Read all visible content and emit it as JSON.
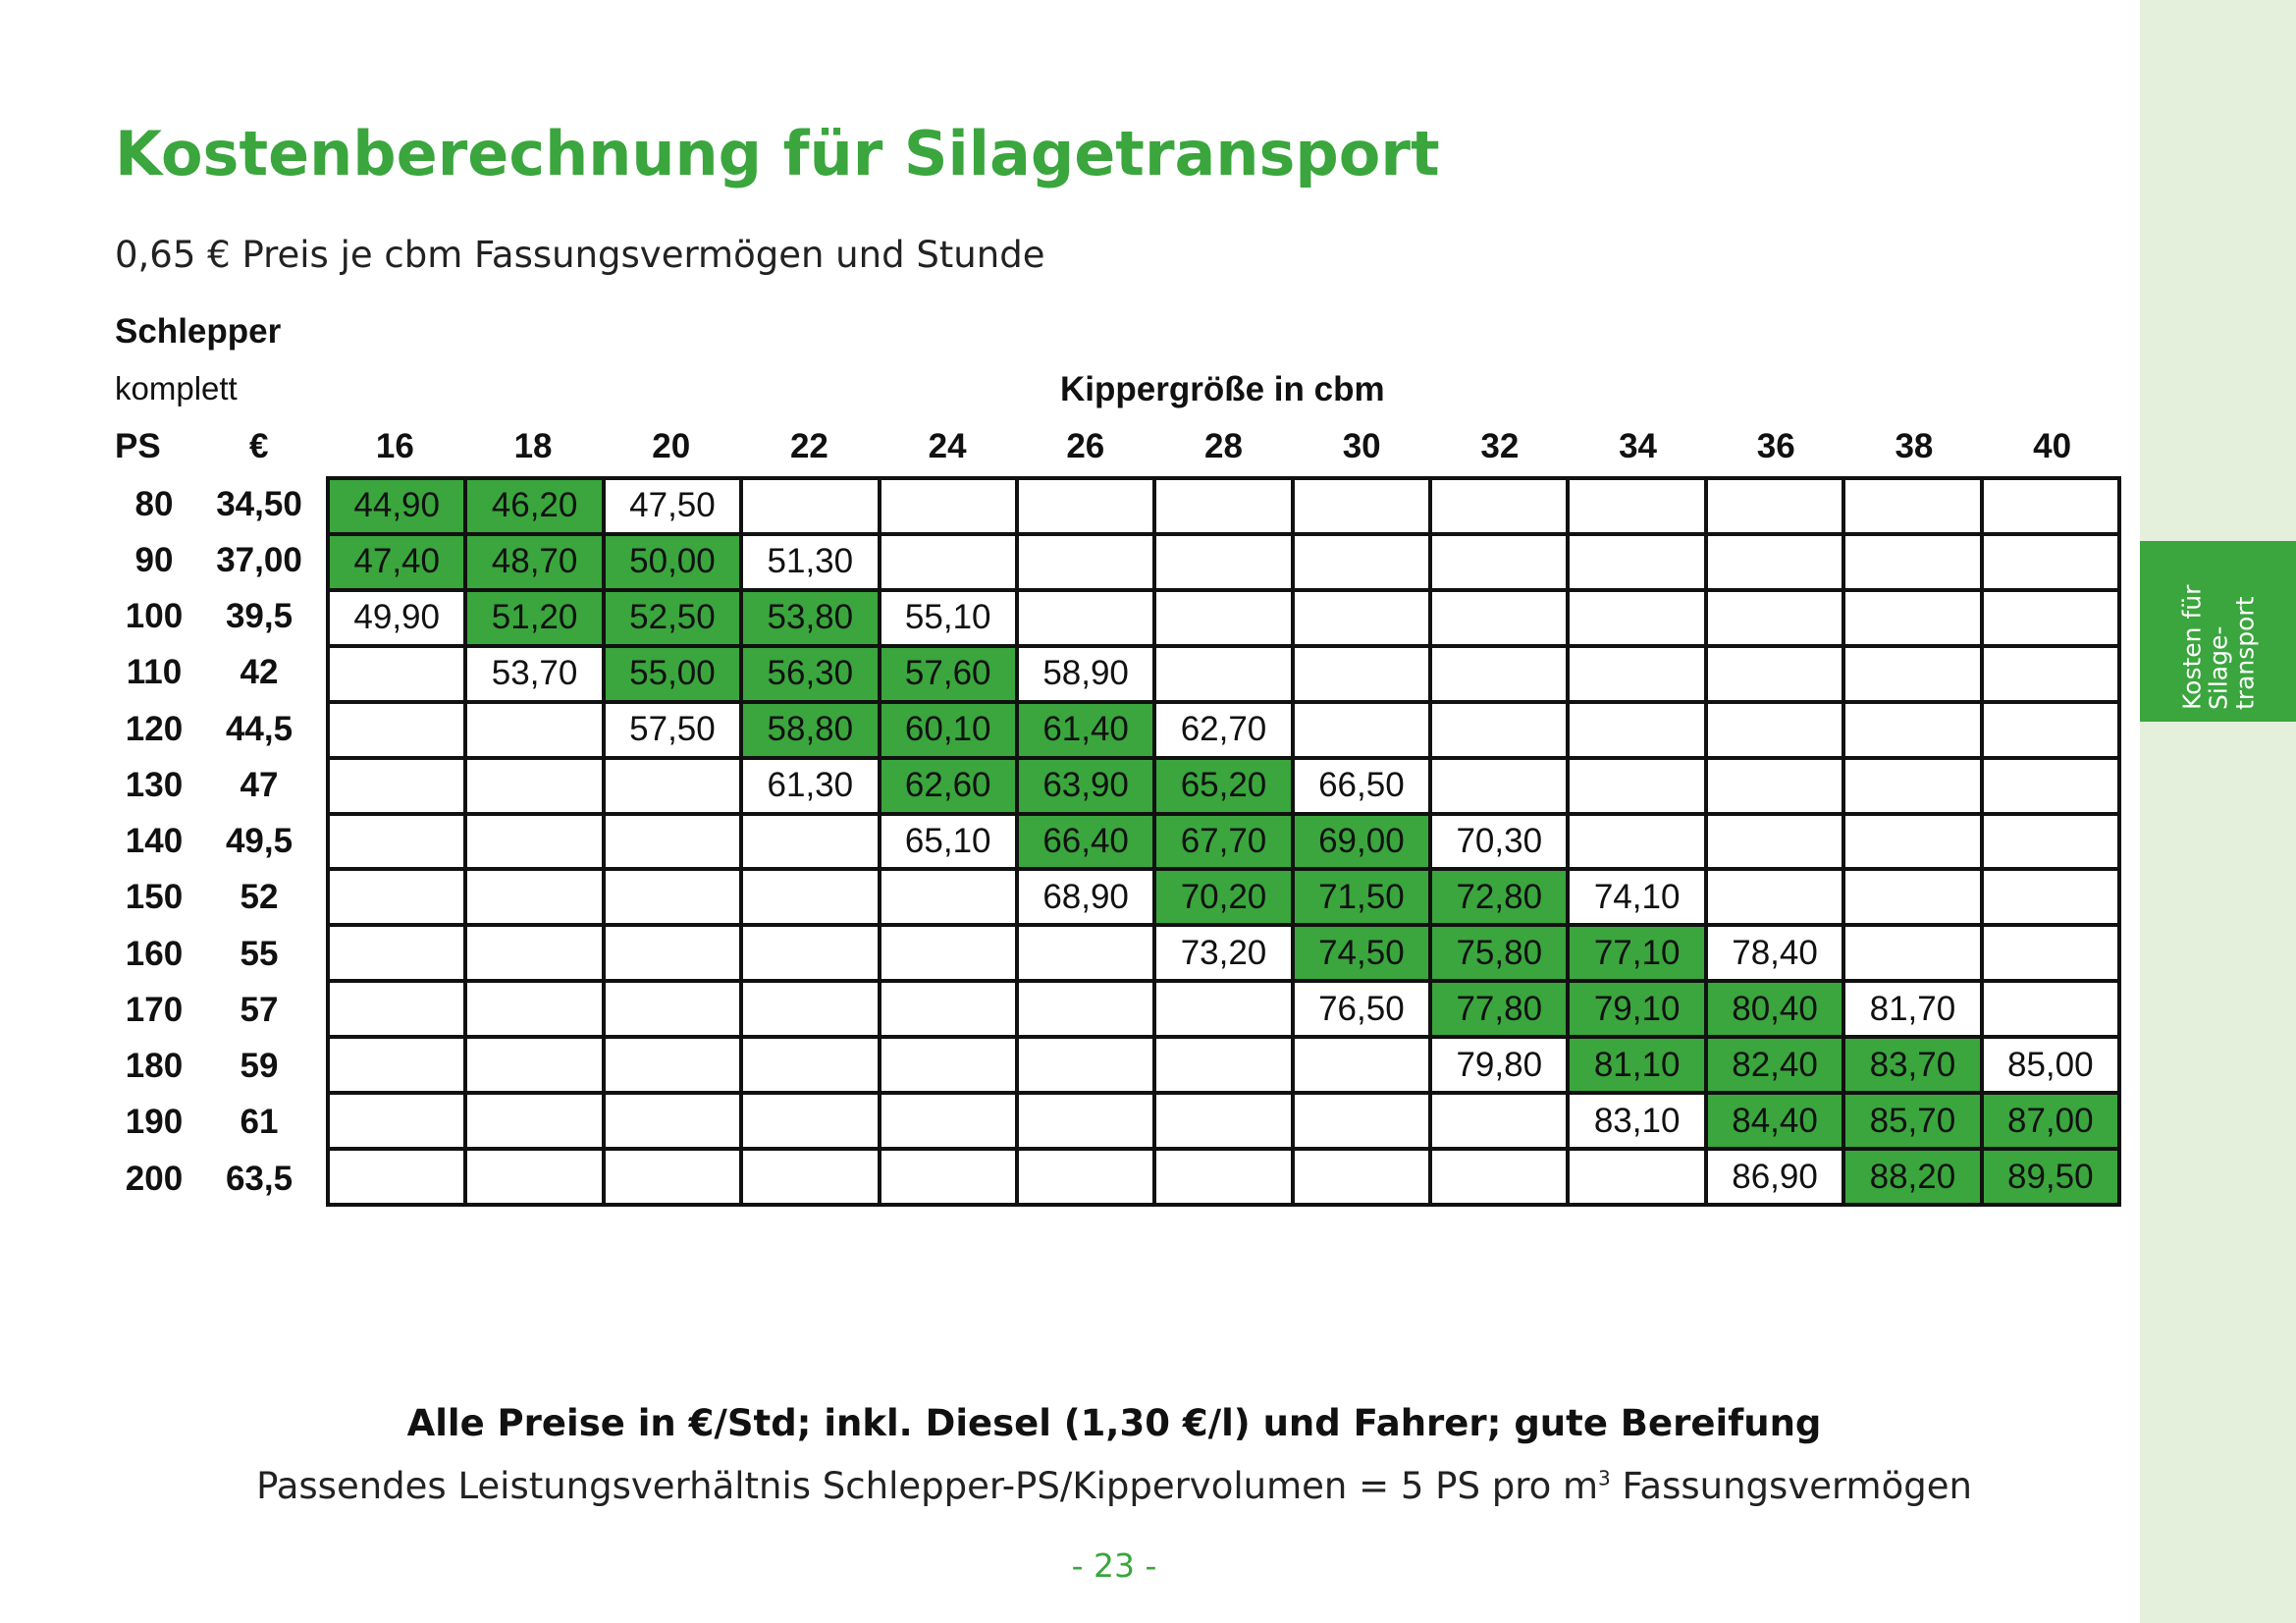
{
  "title": "Kostenberechnung für Silagetransport",
  "subtitle": "0,65 € Preis je cbm Fassungsvermögen und Stunde",
  "labels": {
    "schlepper": "Schlepper",
    "komplett": "komplett",
    "kippergroesse": "Kippergröße in cbm",
    "ps": "PS",
    "euro": "€"
  },
  "columns": [
    "16",
    "18",
    "20",
    "22",
    "24",
    "26",
    "28",
    "30",
    "32",
    "34",
    "36",
    "38",
    "40"
  ],
  "rows": [
    {
      "ps": "80",
      "eur": "34,50",
      "cells": [
        {
          "v": "44,90",
          "hl": true
        },
        {
          "v": "46,20",
          "hl": true
        },
        {
          "v": "47,50",
          "hl": false
        },
        {
          "v": "",
          "hl": false
        },
        {
          "v": "",
          "hl": false
        },
        {
          "v": "",
          "hl": false
        },
        {
          "v": "",
          "hl": false
        },
        {
          "v": "",
          "hl": false
        },
        {
          "v": "",
          "hl": false
        },
        {
          "v": "",
          "hl": false
        },
        {
          "v": "",
          "hl": false
        },
        {
          "v": "",
          "hl": false
        },
        {
          "v": "",
          "hl": false
        }
      ]
    },
    {
      "ps": "90",
      "eur": "37,00",
      "cells": [
        {
          "v": "47,40",
          "hl": true
        },
        {
          "v": "48,70",
          "hl": true
        },
        {
          "v": "50,00",
          "hl": true
        },
        {
          "v": "51,30",
          "hl": false
        },
        {
          "v": "",
          "hl": false
        },
        {
          "v": "",
          "hl": false
        },
        {
          "v": "",
          "hl": false
        },
        {
          "v": "",
          "hl": false
        },
        {
          "v": "",
          "hl": false
        },
        {
          "v": "",
          "hl": false
        },
        {
          "v": "",
          "hl": false
        },
        {
          "v": "",
          "hl": false
        },
        {
          "v": "",
          "hl": false
        }
      ]
    },
    {
      "ps": "100",
      "eur": "39,5",
      "cells": [
        {
          "v": "49,90",
          "hl": false
        },
        {
          "v": "51,20",
          "hl": true
        },
        {
          "v": "52,50",
          "hl": true
        },
        {
          "v": "53,80",
          "hl": true
        },
        {
          "v": "55,10",
          "hl": false
        },
        {
          "v": "",
          "hl": false
        },
        {
          "v": "",
          "hl": false
        },
        {
          "v": "",
          "hl": false
        },
        {
          "v": "",
          "hl": false
        },
        {
          "v": "",
          "hl": false
        },
        {
          "v": "",
          "hl": false
        },
        {
          "v": "",
          "hl": false
        },
        {
          "v": "",
          "hl": false
        }
      ]
    },
    {
      "ps": "110",
      "eur": "42",
      "cells": [
        {
          "v": "",
          "hl": false
        },
        {
          "v": "53,70",
          "hl": false
        },
        {
          "v": "55,00",
          "hl": true
        },
        {
          "v": "56,30",
          "hl": true
        },
        {
          "v": "57,60",
          "hl": true
        },
        {
          "v": "58,90",
          "hl": false
        },
        {
          "v": "",
          "hl": false
        },
        {
          "v": "",
          "hl": false
        },
        {
          "v": "",
          "hl": false
        },
        {
          "v": "",
          "hl": false
        },
        {
          "v": "",
          "hl": false
        },
        {
          "v": "",
          "hl": false
        },
        {
          "v": "",
          "hl": false
        }
      ]
    },
    {
      "ps": "120",
      "eur": "44,5",
      "cells": [
        {
          "v": "",
          "hl": false
        },
        {
          "v": "",
          "hl": false
        },
        {
          "v": "57,50",
          "hl": false
        },
        {
          "v": "58,80",
          "hl": true
        },
        {
          "v": "60,10",
          "hl": true
        },
        {
          "v": "61,40",
          "hl": true
        },
        {
          "v": "62,70",
          "hl": false
        },
        {
          "v": "",
          "hl": false
        },
        {
          "v": "",
          "hl": false
        },
        {
          "v": "",
          "hl": false
        },
        {
          "v": "",
          "hl": false
        },
        {
          "v": "",
          "hl": false
        },
        {
          "v": "",
          "hl": false
        }
      ]
    },
    {
      "ps": "130",
      "eur": "47",
      "cells": [
        {
          "v": "",
          "hl": false
        },
        {
          "v": "",
          "hl": false
        },
        {
          "v": "",
          "hl": false
        },
        {
          "v": "61,30",
          "hl": false
        },
        {
          "v": "62,60",
          "hl": true
        },
        {
          "v": "63,90",
          "hl": true
        },
        {
          "v": "65,20",
          "hl": true
        },
        {
          "v": "66,50",
          "hl": false
        },
        {
          "v": "",
          "hl": false
        },
        {
          "v": "",
          "hl": false
        },
        {
          "v": "",
          "hl": false
        },
        {
          "v": "",
          "hl": false
        },
        {
          "v": "",
          "hl": false
        }
      ]
    },
    {
      "ps": "140",
      "eur": "49,5",
      "cells": [
        {
          "v": "",
          "hl": false
        },
        {
          "v": "",
          "hl": false
        },
        {
          "v": "",
          "hl": false
        },
        {
          "v": "",
          "hl": false
        },
        {
          "v": "65,10",
          "hl": false
        },
        {
          "v": "66,40",
          "hl": true
        },
        {
          "v": "67,70",
          "hl": true
        },
        {
          "v": "69,00",
          "hl": true
        },
        {
          "v": "70,30",
          "hl": false
        },
        {
          "v": "",
          "hl": false
        },
        {
          "v": "",
          "hl": false
        },
        {
          "v": "",
          "hl": false
        },
        {
          "v": "",
          "hl": false
        }
      ]
    },
    {
      "ps": "150",
      "eur": "52",
      "cells": [
        {
          "v": "",
          "hl": false
        },
        {
          "v": "",
          "hl": false
        },
        {
          "v": "",
          "hl": false
        },
        {
          "v": "",
          "hl": false
        },
        {
          "v": "",
          "hl": false
        },
        {
          "v": "68,90",
          "hl": false
        },
        {
          "v": "70,20",
          "hl": true
        },
        {
          "v": "71,50",
          "hl": true
        },
        {
          "v": "72,80",
          "hl": true
        },
        {
          "v": "74,10",
          "hl": false
        },
        {
          "v": "",
          "hl": false
        },
        {
          "v": "",
          "hl": false
        },
        {
          "v": "",
          "hl": false
        }
      ]
    },
    {
      "ps": "160",
      "eur": "55",
      "cells": [
        {
          "v": "",
          "hl": false
        },
        {
          "v": "",
          "hl": false
        },
        {
          "v": "",
          "hl": false
        },
        {
          "v": "",
          "hl": false
        },
        {
          "v": "",
          "hl": false
        },
        {
          "v": "",
          "hl": false
        },
        {
          "v": "73,20",
          "hl": false
        },
        {
          "v": "74,50",
          "hl": true
        },
        {
          "v": "75,80",
          "hl": true
        },
        {
          "v": "77,10",
          "hl": true
        },
        {
          "v": "78,40",
          "hl": false
        },
        {
          "v": "",
          "hl": false
        },
        {
          "v": "",
          "hl": false
        }
      ]
    },
    {
      "ps": "170",
      "eur": "57",
      "cells": [
        {
          "v": "",
          "hl": false
        },
        {
          "v": "",
          "hl": false
        },
        {
          "v": "",
          "hl": false
        },
        {
          "v": "",
          "hl": false
        },
        {
          "v": "",
          "hl": false
        },
        {
          "v": "",
          "hl": false
        },
        {
          "v": "",
          "hl": false
        },
        {
          "v": "76,50",
          "hl": false
        },
        {
          "v": "77,80",
          "hl": true
        },
        {
          "v": "79,10",
          "hl": true
        },
        {
          "v": "80,40",
          "hl": true
        },
        {
          "v": "81,70",
          "hl": false
        },
        {
          "v": "",
          "hl": false
        }
      ]
    },
    {
      "ps": "180",
      "eur": "59",
      "cells": [
        {
          "v": "",
          "hl": false
        },
        {
          "v": "",
          "hl": false
        },
        {
          "v": "",
          "hl": false
        },
        {
          "v": "",
          "hl": false
        },
        {
          "v": "",
          "hl": false
        },
        {
          "v": "",
          "hl": false
        },
        {
          "v": "",
          "hl": false
        },
        {
          "v": "",
          "hl": false
        },
        {
          "v": "79,80",
          "hl": false
        },
        {
          "v": "81,10",
          "hl": true
        },
        {
          "v": "82,40",
          "hl": true
        },
        {
          "v": "83,70",
          "hl": true
        },
        {
          "v": "85,00",
          "hl": false
        }
      ]
    },
    {
      "ps": "190",
      "eur": "61",
      "cells": [
        {
          "v": "",
          "hl": false
        },
        {
          "v": "",
          "hl": false
        },
        {
          "v": "",
          "hl": false
        },
        {
          "v": "",
          "hl": false
        },
        {
          "v": "",
          "hl": false
        },
        {
          "v": "",
          "hl": false
        },
        {
          "v": "",
          "hl": false
        },
        {
          "v": "",
          "hl": false
        },
        {
          "v": "",
          "hl": false
        },
        {
          "v": "83,10",
          "hl": false
        },
        {
          "v": "84,40",
          "hl": true
        },
        {
          "v": "85,70",
          "hl": true
        },
        {
          "v": "87,00",
          "hl": true
        }
      ]
    },
    {
      "ps": "200",
      "eur": "63,5",
      "cells": [
        {
          "v": "",
          "hl": false
        },
        {
          "v": "",
          "hl": false
        },
        {
          "v": "",
          "hl": false
        },
        {
          "v": "",
          "hl": false
        },
        {
          "v": "",
          "hl": false
        },
        {
          "v": "",
          "hl": false
        },
        {
          "v": "",
          "hl": false
        },
        {
          "v": "",
          "hl": false
        },
        {
          "v": "",
          "hl": false
        },
        {
          "v": "",
          "hl": false
        },
        {
          "v": "86,90",
          "hl": false
        },
        {
          "v": "88,20",
          "hl": true
        },
        {
          "v": "89,50",
          "hl": true
        }
      ]
    }
  ],
  "footer": {
    "bold_note": "Alle Preise in €/Std; inkl. Diesel (1,30 €/l) und Fahrer; gute Bereifung",
    "note_prefix": "Passendes Leistungsverhältnis Schlepper-PS/Kippervolumen = 5 PS pro m",
    "note_sup": "3",
    "note_suffix": " Fassungsvermögen",
    "page_number": "- 23 -"
  },
  "side_tab": {
    "line1": "Kosten für",
    "line2": "Silage-",
    "line3": "transport"
  },
  "colors": {
    "accent": "#3aa63d",
    "sidebar_bg": "#e5f0dc"
  }
}
